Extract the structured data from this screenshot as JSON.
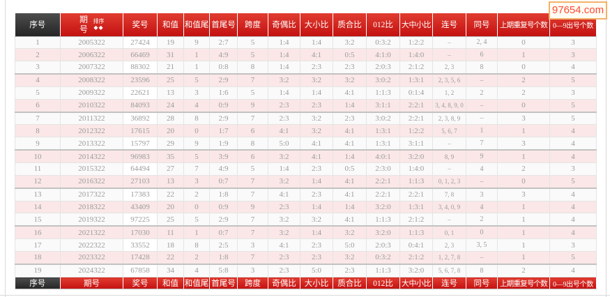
{
  "watermark": {
    "text": "97654.com"
  },
  "table": {
    "columns": [
      {
        "key": "xuhao",
        "label": "序号"
      },
      {
        "key": "qihao",
        "label": "期号"
      },
      {
        "key": "jianghao",
        "label": "奖号"
      },
      {
        "key": "hezhi",
        "label": "和值"
      },
      {
        "key": "hezhiwei",
        "label": "和值尾"
      },
      {
        "key": "shouweihao",
        "label": "首尾号"
      },
      {
        "key": "kuadu",
        "label": "跨度"
      },
      {
        "key": "qioubi",
        "label": "奇偶比"
      },
      {
        "key": "daxiaobi",
        "label": "大小比"
      },
      {
        "key": "zhihebi",
        "label": "质合比"
      },
      {
        "key": "bi012",
        "label": "012比"
      },
      {
        "key": "dazhongxiaobi",
        "label": "大中小比"
      },
      {
        "key": "lianhao",
        "label": "连号"
      },
      {
        "key": "tonghao",
        "label": "同号"
      },
      {
        "key": "shangqichongfu",
        "label": "上期重复号个数"
      },
      {
        "key": "chuhao09",
        "label": "0—9出号个数"
      }
    ],
    "sort": {
      "label": "排序",
      "up_icon": "◆",
      "down_icon": "◆"
    },
    "rows": [
      [
        "1",
        "2005322",
        "27424",
        "19",
        "9",
        "2:7",
        "5",
        "1:4",
        "1:4",
        "3:2",
        "0:3:2",
        "1:2:2",
        "–",
        "2, 4",
        "0",
        "3"
      ],
      [
        "2",
        "2006322",
        "66469",
        "31",
        "1",
        "4:9",
        "5",
        "1:4",
        "4:1",
        "0:5",
        "4:1:0",
        "1:4:0",
        "–",
        "6",
        "1",
        "3"
      ],
      [
        "3",
        "2007322",
        "88302",
        "21",
        "1",
        "0:8",
        "8",
        "1:4",
        "2:3",
        "2:3",
        "2:0:3",
        "2:1:2",
        "2, 3",
        "8",
        "0",
        "4"
      ],
      [
        "4",
        "2008322",
        "23596",
        "25",
        "5",
        "2:9",
        "7",
        "3:2",
        "3:2",
        "3:2",
        "3:0:2",
        "1:3:1",
        "2, 3, 5, 6",
        "–",
        "2",
        "5"
      ],
      [
        "5",
        "2009322",
        "22621",
        "13",
        "3",
        "1:6",
        "5",
        "1:4",
        "1:4",
        "4:1",
        "1:1:3",
        "0:1:4",
        "1, 2",
        "2",
        "2",
        "3"
      ],
      [
        "6",
        "2010322",
        "84093",
        "24",
        "4",
        "0:9",
        "9",
        "2:3",
        "2:3",
        "1:4",
        "3:1:1",
        "2:2:1",
        "3, 4, 8, 9, 0",
        "–",
        "0",
        "5"
      ],
      [
        "7",
        "2011322",
        "36892",
        "28",
        "8",
        "2:9",
        "7",
        "2:3",
        "3:2",
        "2:3",
        "3:0:2",
        "2:2:1",
        "2, 3, 8, 9",
        "–",
        "3",
        "5"
      ],
      [
        "8",
        "2012322",
        "17615",
        "20",
        "0",
        "1:7",
        "6",
        "4:1",
        "3:2",
        "4:1",
        "1:3:1",
        "1:2:2",
        "5, 6, 7",
        "1",
        "1",
        "4"
      ],
      [
        "9",
        "2013322",
        "15797",
        "29",
        "9",
        "1:9",
        "8",
        "5:0",
        "4:1",
        "4:1",
        "1:3:1",
        "3:1:1",
        "–",
        "7",
        "3",
        "4"
      ],
      [
        "10",
        "2014322",
        "96983",
        "35",
        "5",
        "3:9",
        "6",
        "3:2",
        "4:1",
        "1:4",
        "4:0:1",
        "3:2:0",
        "8, 9",
        "9",
        "1",
        "4"
      ],
      [
        "11",
        "2015322",
        "64494",
        "27",
        "7",
        "4:9",
        "5",
        "1:4",
        "2:3",
        "0:5",
        "2:3:0",
        "1:4:0",
        "–",
        "4",
        "2",
        "3"
      ],
      [
        "12",
        "2016322",
        "27103",
        "13",
        "3",
        "0:7",
        "7",
        "3:2",
        "1:4",
        "4:1",
        "2:2:1",
        "1:1:3",
        "0, 1, 2, 3",
        "–",
        "0",
        "5"
      ],
      [
        "13",
        "2017322",
        "17383",
        "22",
        "2",
        "1:8",
        "7",
        "4:1",
        "2:3",
        "4:1",
        "2:2:1",
        "2:2:1",
        "7, 8",
        "3",
        "3",
        "4"
      ],
      [
        "14",
        "2018322",
        "43409",
        "20",
        "0",
        "0:9",
        "9",
        "2:3",
        "1:4",
        "1:4",
        "3:2:0",
        "1:3:1",
        "3, 4, 0, 9",
        "4",
        "1",
        "4"
      ],
      [
        "15",
        "2019322",
        "97225",
        "25",
        "5",
        "2:9",
        "7",
        "3:2",
        "3:2",
        "4:1",
        "1:1:3",
        "2:1:2",
        "–",
        "2",
        "1",
        "4"
      ],
      [
        "16",
        "2021322",
        "17030",
        "11",
        "1",
        "0:7",
        "7",
        "3:2",
        "1:4",
        "3:2",
        "3:2:0",
        "1:1:3",
        "0, 1",
        "0",
        "1",
        "4"
      ],
      [
        "17",
        "2022322",
        "33552",
        "18",
        "8",
        "2:5",
        "3",
        "4:1",
        "2:3",
        "5:0",
        "2:0:3",
        "0:4:1",
        "2, 3",
        "3, 5",
        "1",
        "3"
      ],
      [
        "18",
        "2023322",
        "17428",
        "22",
        "2",
        "1:8",
        "7",
        "2:3",
        "2:3",
        "3:2",
        "0:3:2",
        "2:1:2",
        "1, 2, 7, 8",
        "–",
        "1",
        "5"
      ],
      [
        "19",
        "2024322",
        "67858",
        "34",
        "4",
        "5:8",
        "3",
        "2:3",
        "5:0",
        "2:3",
        "1:1:3",
        "3:2:0",
        "5, 6, 7, 8",
        "8",
        "2",
        "4"
      ]
    ]
  }
}
